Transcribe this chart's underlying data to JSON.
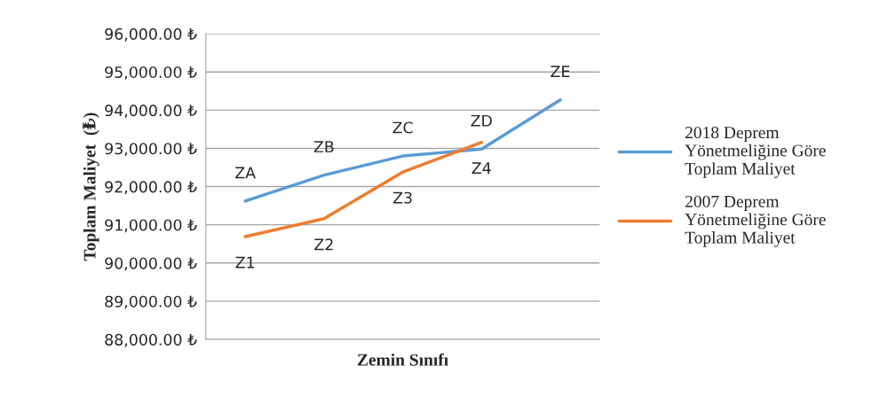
{
  "chart_data": {
    "type": "line",
    "xlabel": "Zemin Sınıfı",
    "ylabel": "Toplam Maliyet  (₺)",
    "categories": [
      null,
      null,
      null,
      null,
      null
    ],
    "series": [
      {
        "name": "2018 Deprem Yönetmeliğine Göre Toplam Maliyet",
        "color": "#5b9bd5",
        "values": [
          91620,
          92300,
          92800,
          92980,
          94270
        ],
        "value_labels": [
          "ZA",
          "ZB",
          "ZC",
          "ZD",
          "ZE"
        ]
      },
      {
        "name": "2007 Deprem Yönetmeliğine Göre Toplam Maliyet",
        "color": "#ed7d31",
        "values": [
          90690,
          91160,
          92380,
          93160,
          null
        ],
        "value_labels": [
          "Z1",
          "Z2",
          "Z3",
          "Z4",
          null
        ]
      }
    ],
    "ylim": [
      88000,
      96000
    ],
    "yticks": [
      {
        "value": 88000,
        "label": "88,000.00 ₺"
      },
      {
        "value": 89000,
        "label": "89,000.00 ₺"
      },
      {
        "value": 90000,
        "label": "90,000.00 ₺"
      },
      {
        "value": 91000,
        "label": "91,000.00 ₺"
      },
      {
        "value": 92000,
        "label": "92,000.00 ₺"
      },
      {
        "value": 93000,
        "label": "93,000.00 ₺"
      },
      {
        "value": 94000,
        "label": "94,000.00 ₺"
      },
      {
        "value": 95000,
        "label": "95,000.00 ₺"
      },
      {
        "value": 96000,
        "label": "96,000.00 ₺"
      }
    ],
    "grid": "y",
    "legend": "right"
  }
}
